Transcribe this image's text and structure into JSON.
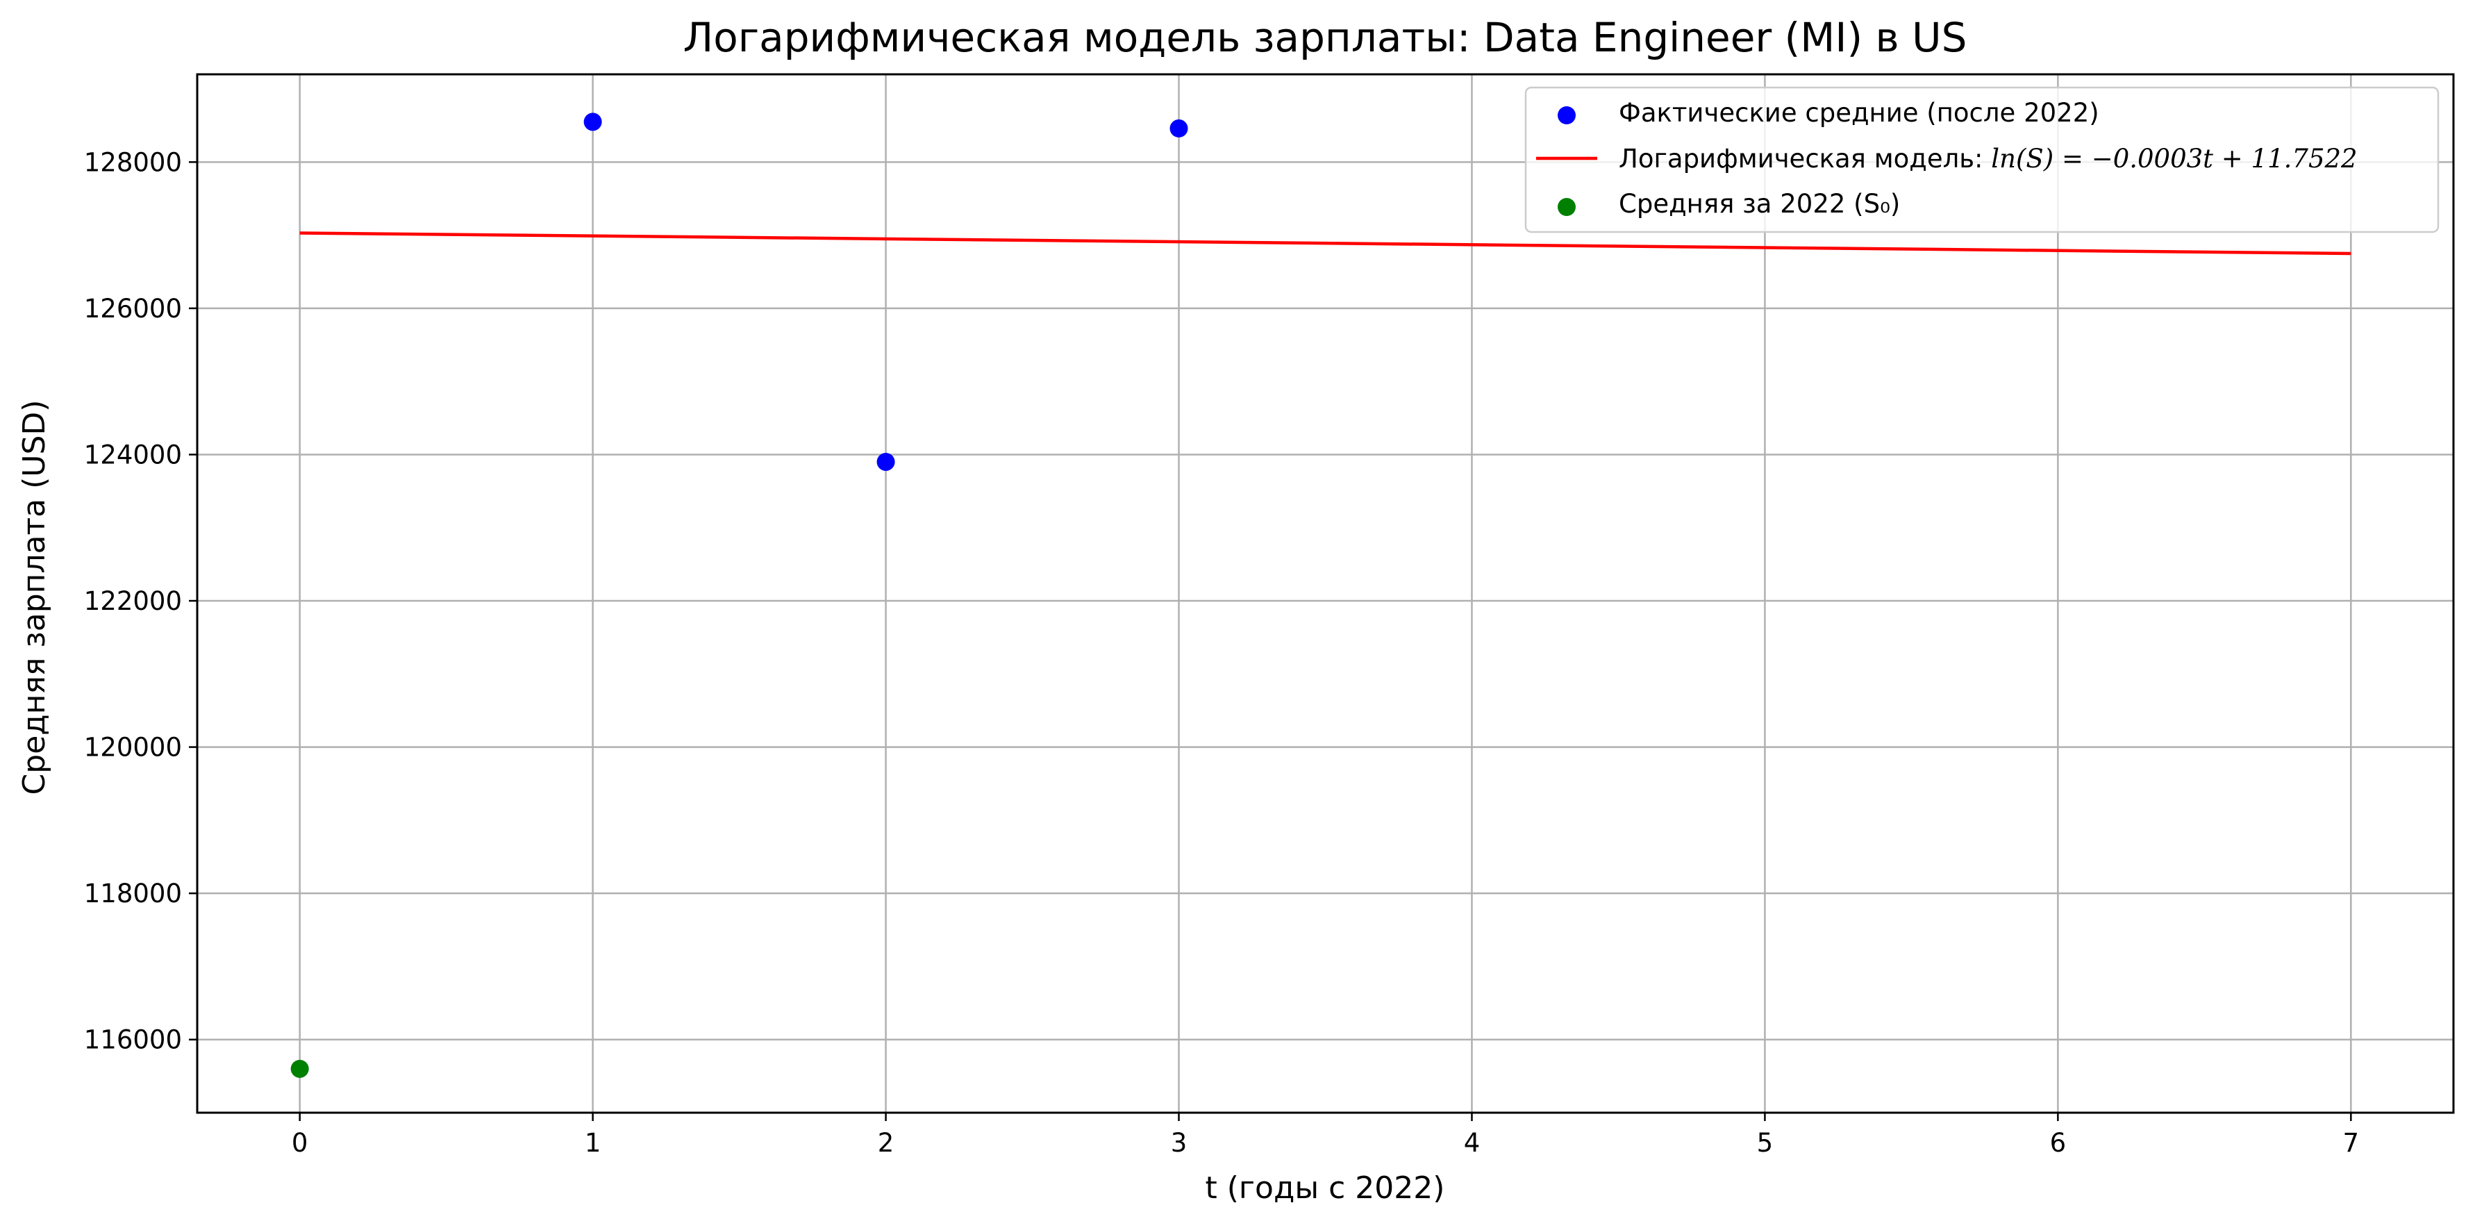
{
  "chart_data": {
    "type": "scatter",
    "title": "Логарифмическая модель зарплаты: Data Engineer (MI) в US",
    "xlabel": "t (годы с 2022)",
    "ylabel": "Средняя зарплата (USD)",
    "xlim": [
      -0.35,
      7.35
    ],
    "ylim": [
      115000,
      129200
    ],
    "x_ticks": [
      0,
      1,
      2,
      3,
      4,
      5,
      6,
      7
    ],
    "y_ticks": [
      116000,
      118000,
      120000,
      122000,
      124000,
      126000,
      128000
    ],
    "grid": true,
    "legend_position": "top-right",
    "series": [
      {
        "name": "Фактические средние (после 2022)",
        "kind": "scatter",
        "color": "#0000ff",
        "points": [
          {
            "x": 1,
            "y": 128550
          },
          {
            "x": 2,
            "y": 123900
          },
          {
            "x": 3,
            "y": 128460
          }
        ]
      },
      {
        "name": "Логарифмическая модель: ln(S) = −0.0003t + 11.7522",
        "legend_prefix": "Логарифмическая модель: ",
        "legend_formula": "ln(S) = −0.0003t + 11.7522",
        "kind": "line",
        "color": "#ff0000",
        "points": [
          {
            "x": 0,
            "y": 127030
          },
          {
            "x": 7,
            "y": 126750
          }
        ]
      },
      {
        "name": "Средняя за 2022 (S₀)",
        "kind": "scatter",
        "color": "#008000",
        "points": [
          {
            "x": 0,
            "y": 115600
          }
        ]
      }
    ]
  }
}
